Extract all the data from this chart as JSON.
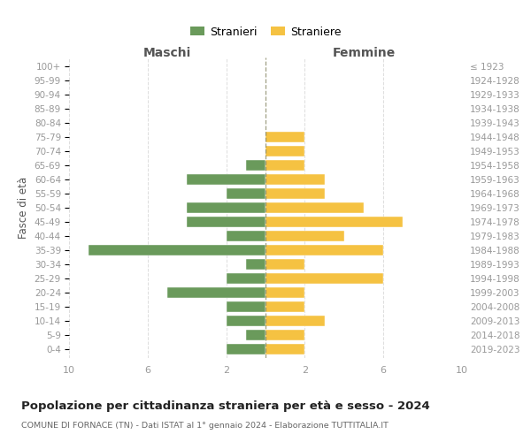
{
  "age_groups": [
    "0-4",
    "5-9",
    "10-14",
    "15-19",
    "20-24",
    "25-29",
    "30-34",
    "35-39",
    "40-44",
    "45-49",
    "50-54",
    "55-59",
    "60-64",
    "65-69",
    "70-74",
    "75-79",
    "80-84",
    "85-89",
    "90-94",
    "95-99",
    "100+"
  ],
  "birth_years": [
    "2019-2023",
    "2014-2018",
    "2009-2013",
    "2004-2008",
    "1999-2003",
    "1994-1998",
    "1989-1993",
    "1984-1988",
    "1979-1983",
    "1974-1978",
    "1969-1973",
    "1964-1968",
    "1959-1963",
    "1954-1958",
    "1949-1953",
    "1944-1948",
    "1939-1943",
    "1934-1938",
    "1929-1933",
    "1924-1928",
    "≤ 1923"
  ],
  "males": [
    2,
    1,
    2,
    2,
    5,
    2,
    1,
    9,
    2,
    4,
    4,
    2,
    4,
    1,
    0,
    0,
    0,
    0,
    0,
    0,
    0
  ],
  "females": [
    2,
    2,
    3,
    2,
    2,
    6,
    2,
    6,
    4,
    7,
    5,
    3,
    3,
    2,
    2,
    2,
    0,
    0,
    0,
    0,
    0
  ],
  "male_color": "#6a9a5b",
  "female_color": "#f5c242",
  "title": "Popolazione per cittadinanza straniera per età e sesso - 2024",
  "subtitle": "COMUNE DI FORNACE (TN) - Dati ISTAT al 1° gennaio 2024 - Elaborazione TUTTITALIA.IT",
  "label_maschi": "Maschi",
  "label_femmine": "Femmine",
  "ylabel_left": "Fasce di età",
  "legend_male": "Stranieri",
  "legend_female": "Straniere",
  "xlim": 10,
  "center_line_color": "#888866",
  "grid_color": "#dddddd"
}
